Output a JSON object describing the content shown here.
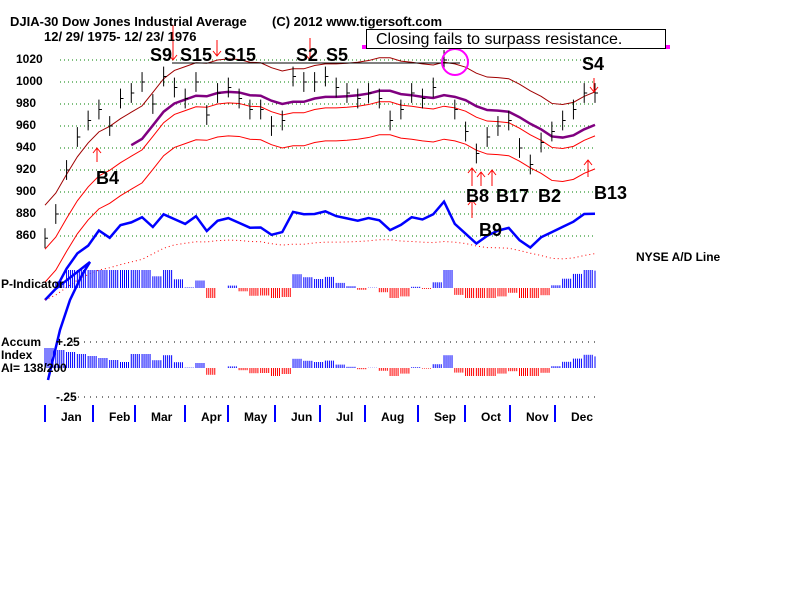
{
  "header": {
    "title": "DJIA-30  Dow Jones Industrial Average",
    "dates": "12/ 29/ 1975- 12/ 23/ 1976",
    "copyright": "(C) 2012 www.tigersoft.com"
  },
  "annotation": "Closing fails to surpass resistance.",
  "signals": [
    "S9",
    "S15",
    "S15",
    "S2",
    "S5",
    "S4",
    "B4",
    "B8",
    "B17",
    "B2",
    "B9",
    "B13"
  ],
  "labels": {
    "ad_line": "NYSE A/D Line",
    "p_indicator": "P-Indicator",
    "accum1": "Accum",
    "accum2": "Index",
    "ai": "AI= 138/200",
    "ai_top": "+.25",
    "ai_bottom": "-.25"
  },
  "colors": {
    "price": "#000000",
    "ma": "#800080",
    "band": "#ff0000",
    "ad": "#0000ff",
    "annotation": "#ff00ff"
  },
  "chart_data": {
    "type": "bar",
    "title": "DJIA-30 Dow Jones Industrial Average",
    "ylim": [
      850,
      1030
    ],
    "yticks": [
      1020,
      1000,
      980,
      960,
      940,
      920,
      900,
      880,
      860
    ],
    "months": [
      "Jan",
      "Feb",
      "Mar",
      "Apr",
      "May",
      "Jun",
      "Jul",
      "Aug",
      "Sep",
      "Oct",
      "Nov",
      "Dec"
    ],
    "closes": [
      858,
      880,
      920,
      950,
      965,
      975,
      960,
      985,
      990,
      1000,
      980,
      1005,
      995,
      985,
      1000,
      970,
      990,
      995,
      985,
      975,
      975,
      960,
      965,
      1005,
      1000,
      1000,
      1005,
      995,
      990,
      985,
      990,
      985,
      965,
      975,
      990,
      985,
      995,
      1020,
      975,
      955,
      935,
      950,
      960,
      965,
      940,
      925,
      945,
      955,
      965,
      975,
      990,
      990
    ],
    "resistance": 1020
  }
}
